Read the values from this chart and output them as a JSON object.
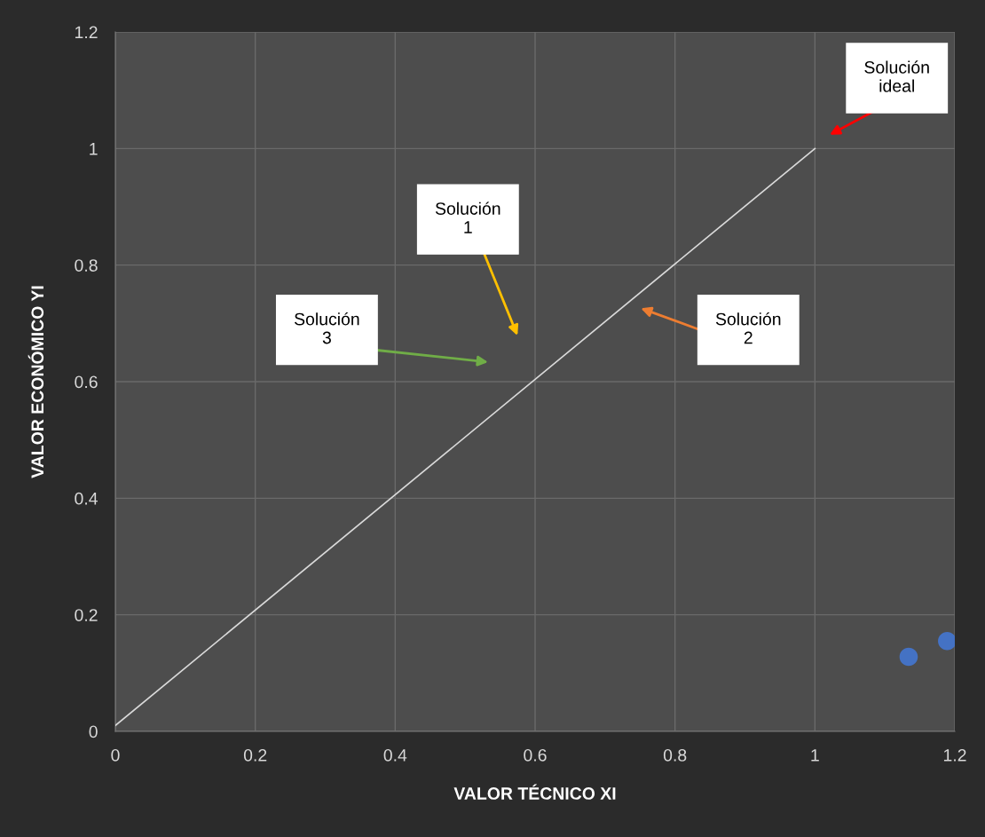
{
  "chart_data": {
    "type": "scatter",
    "xlabel": "VALOR TÉCNICO XI",
    "ylabel": "VALOR ECONÓMICO YI",
    "xlim": [
      0,
      1.2
    ],
    "ylim": [
      0,
      1.2
    ],
    "xticks": [
      0,
      0.2,
      0.4,
      0.6,
      0.8,
      1,
      1.2
    ],
    "yticks": [
      0,
      0.2,
      0.4,
      0.6,
      0.8,
      1,
      1.2
    ],
    "grid": true,
    "series": [
      {
        "type": "line",
        "color": "#d9d9d9",
        "x": [
          0,
          1
        ],
        "values": [
          0.01,
          1
        ]
      },
      {
        "color": "#4472c4",
        "marker": "circle",
        "x": [
          1.134,
          1.189
        ],
        "values": [
          0.128,
          0.155
        ]
      }
    ],
    "annotations": [
      "Solución\nideal",
      "Solución\n1",
      "Solución\n2",
      "Solución\n3"
    ]
  }
}
